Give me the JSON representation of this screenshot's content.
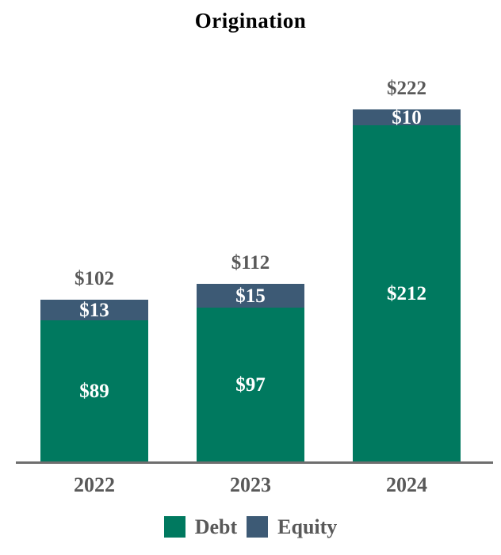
{
  "title": "Origination",
  "chart_data": {
    "type": "bar",
    "stacked": true,
    "title": "Origination",
    "categories": [
      "2022",
      "2023",
      "2024"
    ],
    "series": [
      {
        "name": "Debt",
        "color": "#00795F",
        "values": [
          89,
          97,
          212
        ]
      },
      {
        "name": "Equity",
        "color": "#3D5A75",
        "values": [
          13,
          15,
          10
        ]
      }
    ],
    "totals": [
      102,
      112,
      222
    ],
    "value_prefix": "$",
    "ylim": [
      0,
      240
    ],
    "gridlines": false,
    "y_axis_visible": false,
    "x_axis_visible": true,
    "legend_position": "bottom",
    "segment_labels": "inside-white",
    "total_labels": "above-bars-gray"
  },
  "bars": [
    {
      "category": "2022",
      "total_label": "$102",
      "segments": {
        "equity": "$13",
        "debt": "$89"
      }
    },
    {
      "category": "2023",
      "total_label": "$112",
      "segments": {
        "equity": "$15",
        "debt": "$97"
      }
    },
    {
      "category": "2024",
      "total_label": "$222",
      "segments": {
        "equity": "$10",
        "debt": "$212"
      }
    }
  ],
  "legend": {
    "debt_label": "Debt",
    "equity_label": "Equity"
  },
  "colors": {
    "debt": "#00795F",
    "equity": "#3D5A75",
    "title": "#000000",
    "total_label": "#595959",
    "category_label": "#595959",
    "legend_text": "#595959",
    "axis_line": "#6E6E6E",
    "bar_value_text": "#FFFFFF",
    "background": "#FFFFFF"
  }
}
